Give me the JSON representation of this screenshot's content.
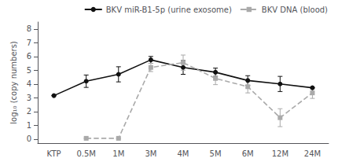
{
  "chart_data": {
    "type": "line",
    "categories": [
      "KTP",
      "0.5M",
      "1M",
      "3M",
      "4M",
      "5M",
      "6M",
      "12M",
      "24M"
    ],
    "series": [
      {
        "name": "BKV miR-B1-5p (urine exosome)",
        "color": "#111111",
        "line_style": "solid",
        "marker": "circle",
        "values": [
          3.15,
          4.2,
          4.7,
          5.75,
          5.2,
          4.85,
          4.25,
          4.0,
          3.72
        ],
        "errors": [
          0.0,
          0.45,
          0.55,
          0.25,
          0.5,
          0.3,
          0.35,
          0.55,
          0.0
        ]
      },
      {
        "name": "BKV DNA (blood)",
        "color": "#aaaaaa",
        "line_style": "dashed",
        "marker": "square",
        "values": [
          null,
          0.05,
          0.05,
          5.2,
          5.55,
          4.4,
          3.8,
          1.55,
          3.35
        ],
        "errors": [
          0.0,
          0.0,
          0.0,
          0.3,
          0.55,
          0.45,
          0.45,
          0.65,
          0.4
        ]
      }
    ],
    "ylabel": "log₁₀ (copy numbers)",
    "ylim": [
      -0.3,
      8.5
    ],
    "yticks": [
      0,
      1,
      2,
      3,
      4,
      5,
      6,
      7,
      8
    ],
    "grid": false,
    "legend": "upper right"
  }
}
